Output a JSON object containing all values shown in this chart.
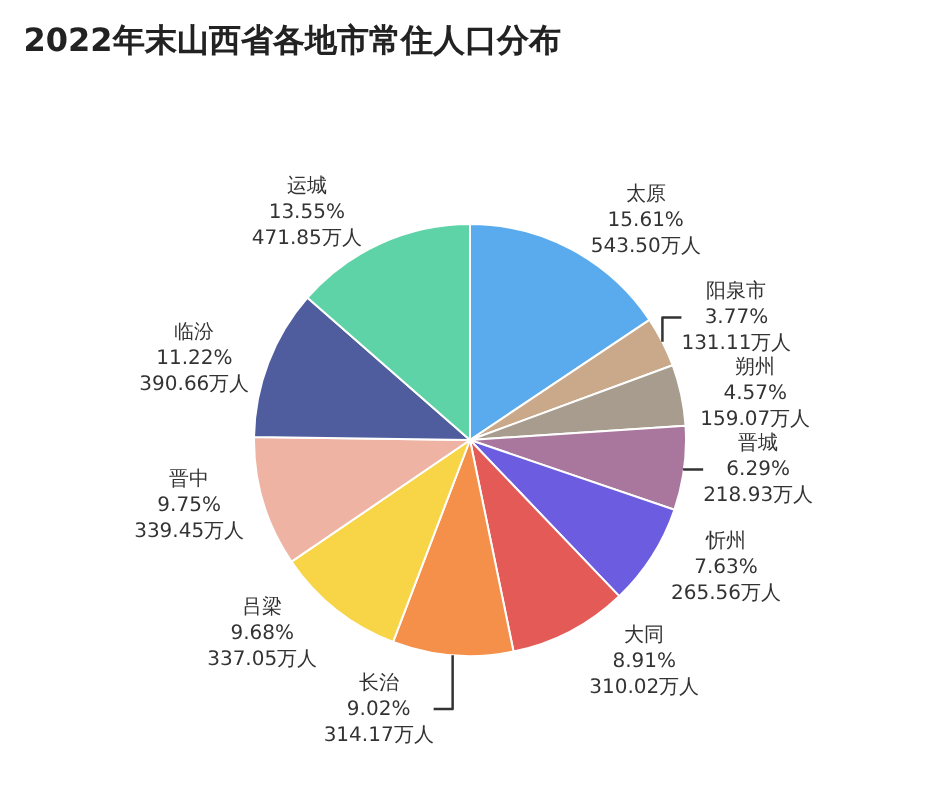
{
  "chart_data": {
    "type": "pie",
    "title": "2022年末山西省各地市常住人口分布",
    "categories": [
      "太原",
      "阳泉市",
      "朔州",
      "晋城",
      "忻州",
      "大同",
      "长治",
      "吕梁",
      "晋中",
      "临汾",
      "运城"
    ],
    "values": [
      543.5,
      131.11,
      159.07,
      218.93,
      265.56,
      310.02,
      314.17,
      337.05,
      339.45,
      390.66,
      471.85
    ],
    "value_labels": [
      "15.61%\n543.50万人",
      "3.77%\n131.11万人",
      "4.57%\n159.07万人",
      "6.29%\n218.93万人",
      "7.63%\n265.56万人",
      "8.91%\n310.02万人",
      "9.02%\n314.17万人",
      "9.68%\n337.05万人",
      "9.75%\n339.45万人",
      "11.22%\n390.66万人",
      "13.55%\n471.85万人"
    ],
    "colors": [
      "#5aabee",
      "#c9a98a",
      "#a79c8e",
      "#a9779e",
      "#6b5ce0",
      "#e45a56",
      "#f5904a",
      "#f8d447",
      "#eeb3a3",
      "#4f5d9e",
      "#5fd3a8"
    ]
  }
}
